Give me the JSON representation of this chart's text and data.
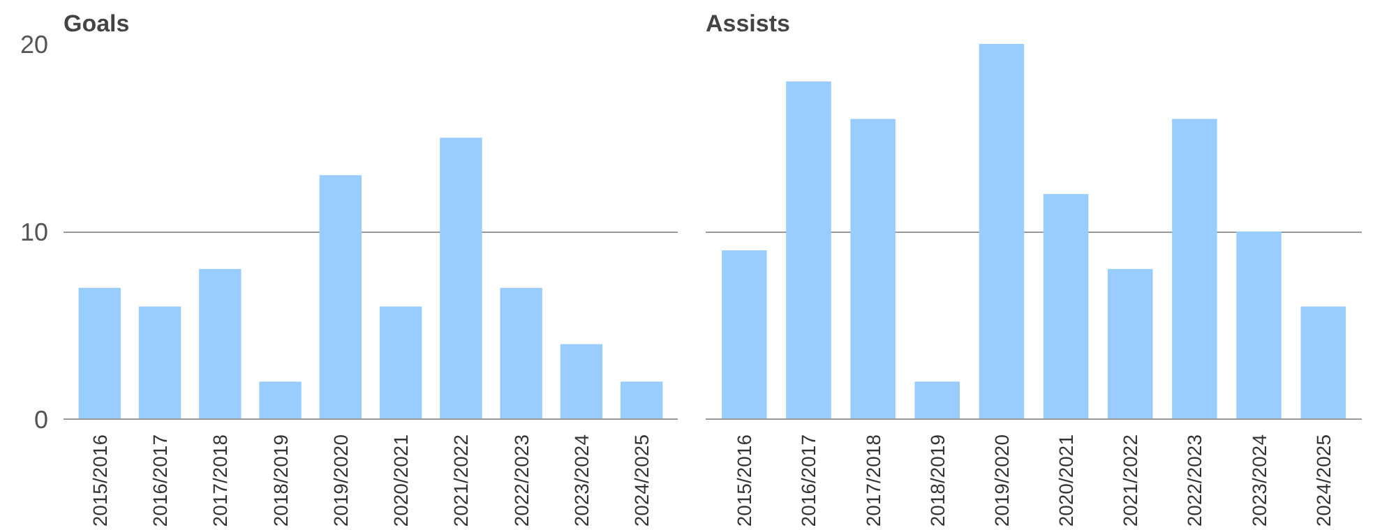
{
  "chart_data": [
    {
      "type": "bar",
      "title": "Goals",
      "categories": [
        "2015/2016",
        "2016/2017",
        "2017/2018",
        "2018/2019",
        "2019/2020",
        "2020/2021",
        "2021/2022",
        "2022/2023",
        "2023/2024",
        "2024/2025"
      ],
      "values": [
        7,
        6,
        8,
        2,
        13,
        6,
        15,
        7,
        4,
        2
      ],
      "color": "#99ccff",
      "ylim": [
        0,
        20
      ],
      "yticks": [
        0,
        10,
        20
      ],
      "grid": "y"
    },
    {
      "type": "bar",
      "title": "Assists",
      "categories": [
        "2015/2016",
        "2016/2017",
        "2017/2018",
        "2018/2019",
        "2019/2020",
        "2020/2021",
        "2021/2022",
        "2022/2023",
        "2023/2024",
        "2024/2025"
      ],
      "values": [
        9,
        18,
        16,
        2,
        20,
        12,
        8,
        16,
        10,
        6
      ],
      "color": "#99ccff",
      "ylim": [
        0,
        20
      ],
      "yticks": [
        0,
        10,
        20
      ],
      "grid": "y",
      "tick_labels": "x"
    }
  ]
}
